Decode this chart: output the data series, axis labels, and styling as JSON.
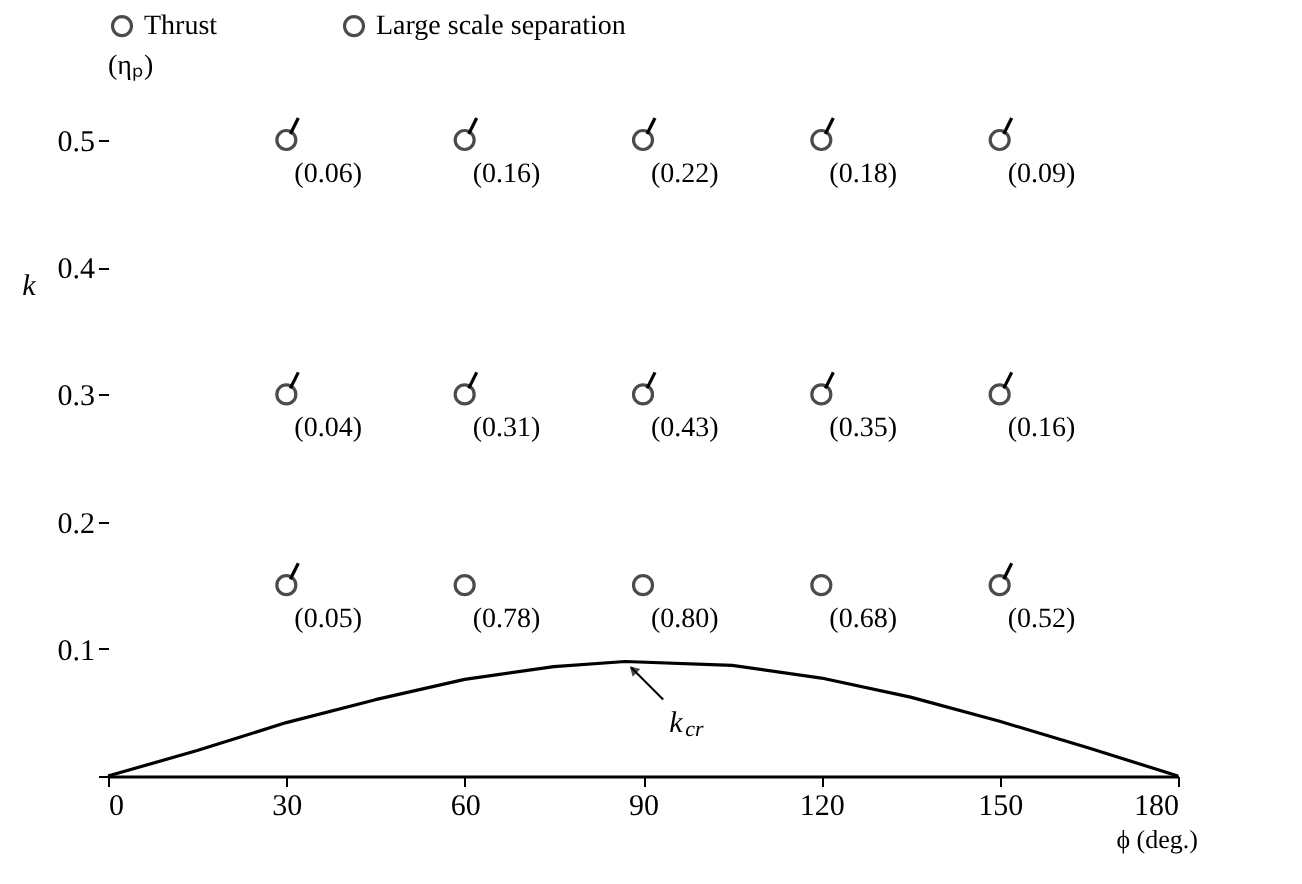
{
  "chart_data": {
    "type": "scatter",
    "xlabel": "ϕ (deg.)",
    "ylabel": "k",
    "legend_title": "(ηₚ)",
    "xlim": [
      0,
      180
    ],
    "xticks": [
      0,
      30,
      60,
      90,
      120,
      150,
      180
    ],
    "ylim": [
      0,
      0.5
    ],
    "yticks": [
      {
        "value": 0,
        "label": null
      },
      0.1,
      0.2,
      0.3,
      0.4,
      0.5
    ],
    "legend": "top",
    "marker": "circle",
    "grid": false,
    "series": [
      {
        "name": "Thrust",
        "color": "#000000",
        "x": [
          60,
          90,
          120
        ],
        "values": [
          0.15,
          0.15,
          0.15
        ]
      },
      {
        "name": "Large scale separation",
        "color": "#000000",
        "x": [
          30,
          150,
          30,
          60,
          90,
          120,
          150,
          30,
          60,
          90,
          120,
          150
        ],
        "values": [
          0.15,
          0.15,
          0.3,
          0.3,
          0.3,
          0.3,
          0.3,
          0.5,
          0.5,
          0.5,
          0.5,
          0.5
        ]
      },
      {
        "type": "line",
        "color": "#000000",
        "line_style": "solid",
        "marker": "none",
        "x": [
          0,
          15,
          30,
          45,
          60,
          75,
          87,
          105,
          120,
          135,
          150,
          165,
          180
        ],
        "values": [
          0,
          0.02,
          0.042,
          0.06,
          0.076,
          0.086,
          0.09,
          0.087,
          0.077,
          0.062,
          0.043,
          0.022,
          0
        ]
      }
    ],
    "annotations": [
      {
        "text": "(0.05)",
        "x": 30,
        "y": 0.15
      },
      {
        "text": "(0.78)",
        "x": 60,
        "y": 0.15
      },
      {
        "text": "(0.80)",
        "x": 90,
        "y": 0.15
      },
      {
        "text": "(0.68)",
        "x": 120,
        "y": 0.15
      },
      {
        "text": "(0.52)",
        "x": 150,
        "y": 0.15
      },
      {
        "text": "(0.04)",
        "x": 30,
        "y": 0.3
      },
      {
        "text": "(0.31)",
        "x": 60,
        "y": 0.3
      },
      {
        "text": "(0.43)",
        "x": 90,
        "y": 0.3
      },
      {
        "text": "(0.35)",
        "x": 120,
        "y": 0.3
      },
      {
        "text": "(0.16)",
        "x": 150,
        "y": 0.3
      },
      {
        "text": "(0.06)",
        "x": 30,
        "y": 0.5
      },
      {
        "text": "(0.16)",
        "x": 60,
        "y": 0.5
      },
      {
        "text": "(0.22)",
        "x": 90,
        "y": 0.5
      },
      {
        "text": "(0.18)",
        "x": 120,
        "y": 0.5
      },
      {
        "text": "(0.09)",
        "x": 150,
        "y": 0.5
      },
      {
        "text": "k$_{cr}$",
        "x": 87,
        "y": 0.09
      }
    ]
  }
}
